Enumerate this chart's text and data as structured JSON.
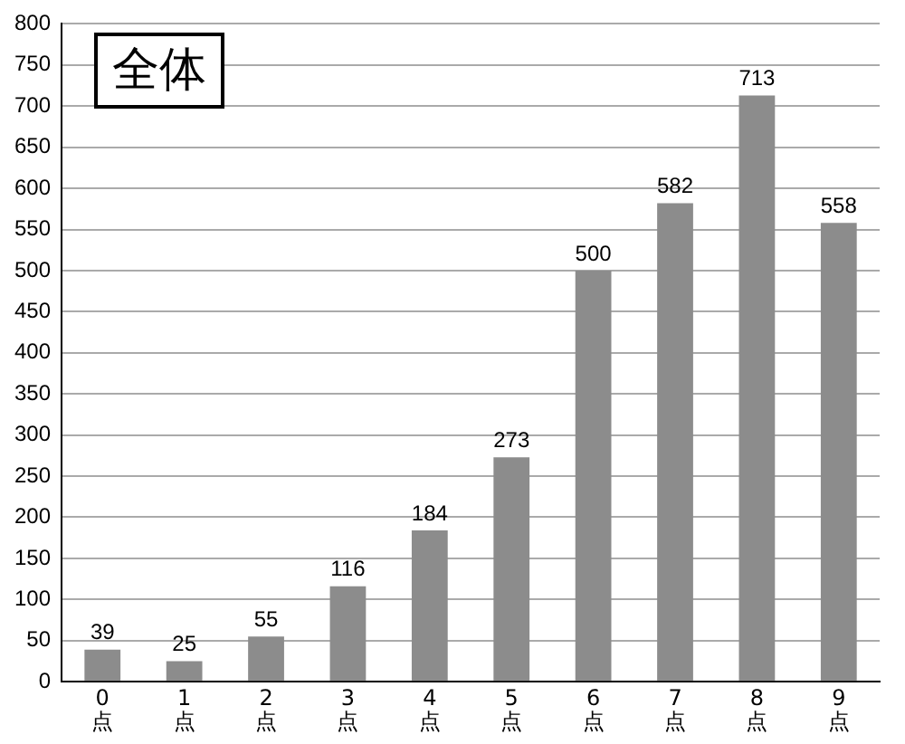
{
  "chart_data": {
    "type": "bar",
    "title": "全体",
    "categories": [
      "0\n点",
      "1\n点",
      "2\n点",
      "3\n点",
      "4\n点",
      "5\n点",
      "6\n点",
      "7\n点",
      "8\n点",
      "9\n点"
    ],
    "values": [
      39,
      25,
      55,
      116,
      184,
      273,
      500,
      582,
      713,
      558
    ],
    "color": "#8c8c8c",
    "ylim": [
      0,
      800
    ],
    "yticks": [
      0,
      50,
      100,
      150,
      200,
      250,
      300,
      350,
      400,
      450,
      500,
      550,
      600,
      650,
      700,
      750,
      800
    ],
    "grid": "y",
    "data_labels": true,
    "legend": false
  }
}
